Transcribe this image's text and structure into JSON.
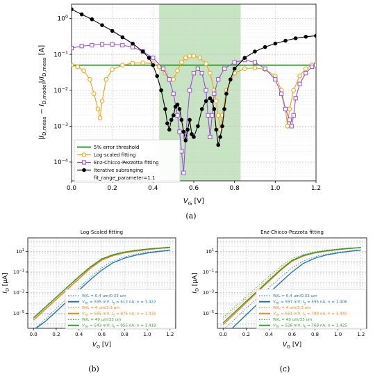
{
  "captions": {
    "a": "(a)",
    "b": "(b)",
    "c": "(c)"
  },
  "colors": {
    "threshold": "#2ca02c",
    "log": "#f0a30a",
    "ecp": "#9b4dd6",
    "iter": "#000000",
    "band": "#a8d5a2",
    "blue": "#1f77b4",
    "orange": "#ff7f0e",
    "green": "#2ca02c"
  },
  "chart_data": [
    {
      "id": "a",
      "type": "line",
      "xlabel": "V_G [V]",
      "ylabel": "|I_D,meas − I_D,model|/I_D,meas [A]",
      "xlim": [
        0.0,
        1.2
      ],
      "ylim": [
        3e-05,
        2.5
      ],
      "y_scale": "log",
      "x_ticks": [
        "0.0",
        "0.2",
        "0.4",
        "0.6",
        "0.8",
        "1.0",
        "1.2"
      ],
      "y_ticks": [
        "10^-4",
        "10^-3",
        "10^-2",
        "10^-1",
        "10^0"
      ],
      "grid": true,
      "legend_position": "lower-left",
      "shaded_region": [
        0.43,
        0.83
      ],
      "series": [
        {
          "name": "5% error threshold",
          "style": "line",
          "color": "threshold",
          "x": [
            0.0,
            1.2
          ],
          "y": [
            0.05,
            0.05
          ]
        },
        {
          "name": "Log-scaled fitting",
          "style": "circle",
          "color": "log",
          "x": [
            0.0,
            0.03,
            0.06,
            0.09,
            0.11,
            0.13,
            0.14,
            0.15,
            0.17,
            0.2,
            0.25,
            0.3,
            0.35,
            0.4,
            0.43,
            0.46,
            0.48,
            0.5,
            0.52,
            0.54,
            0.56,
            0.58,
            0.6,
            0.63,
            0.66,
            0.68,
            0.7,
            0.71,
            0.72,
            0.73,
            0.74,
            0.76,
            0.8,
            0.85,
            0.9,
            0.95,
            1.0,
            1.03,
            1.05,
            1.06,
            1.07,
            1.09,
            1.12,
            1.15,
            1.18,
            1.2
          ],
          "y": [
            0.05,
            0.045,
            0.035,
            0.02,
            0.008,
            0.003,
            0.0017,
            0.005,
            0.02,
            0.038,
            0.05,
            0.057,
            0.058,
            0.055,
            0.045,
            0.03,
            0.02,
            0.02,
            0.035,
            0.06,
            0.08,
            0.09,
            0.09,
            0.08,
            0.055,
            0.03,
            0.01,
            0.005,
            0.002,
            0.0008,
            0.002,
            0.01,
            0.03,
            0.04,
            0.042,
            0.038,
            0.025,
            0.01,
            0.003,
            0.001,
            0.003,
            0.01,
            0.025,
            0.04,
            0.05,
            0.055
          ]
        },
        {
          "name": "Enz-Chicco-Pezzotta fitting",
          "style": "square",
          "color": "ecp",
          "x": [
            0.0,
            0.05,
            0.1,
            0.15,
            0.2,
            0.25,
            0.3,
            0.35,
            0.4,
            0.45,
            0.48,
            0.5,
            0.52,
            0.53,
            0.54,
            0.55,
            0.56,
            0.58,
            0.6,
            0.62,
            0.64,
            0.66,
            0.67,
            0.68,
            0.69,
            0.7,
            0.72,
            0.75,
            0.8,
            0.85,
            0.9,
            0.95,
            1.0,
            1.03,
            1.05,
            1.07,
            1.08,
            1.09,
            1.1,
            1.12,
            1.15,
            1.18,
            1.2
          ],
          "y": [
            0.15,
            0.17,
            0.18,
            0.19,
            0.19,
            0.18,
            0.16,
            0.12,
            0.08,
            0.04,
            0.02,
            0.008,
            0.002,
            0.0007,
            0.0002,
            5e-05,
            0.0005,
            0.01,
            0.03,
            0.04,
            0.03,
            0.01,
            0.002,
            0.0005,
            0.002,
            0.008,
            0.02,
            0.04,
            0.06,
            0.07,
            0.06,
            0.04,
            0.02,
            0.008,
            0.003,
            0.0015,
            0.001,
            0.002,
            0.006,
            0.015,
            0.03,
            0.045,
            0.05
          ]
        },
        {
          "name": "Iterative subranging fit_range_parameter=1.1",
          "style": "dot",
          "color": "iter",
          "x": [
            0.0,
            0.05,
            0.1,
            0.15,
            0.2,
            0.25,
            0.3,
            0.35,
            0.38,
            0.4,
            0.42,
            0.44,
            0.46,
            0.47,
            0.48,
            0.49,
            0.5,
            0.51,
            0.52,
            0.53,
            0.54,
            0.55,
            0.56,
            0.57,
            0.58,
            0.59,
            0.6,
            0.62,
            0.64,
            0.66,
            0.68,
            0.69,
            0.7,
            0.71,
            0.72,
            0.73,
            0.74,
            0.75,
            0.76,
            0.78,
            0.8,
            0.85,
            0.9,
            0.95,
            1.0,
            1.05,
            1.1,
            1.15,
            1.2
          ],
          "y": [
            1.8,
            1.3,
            0.95,
            0.65,
            0.45,
            0.3,
            0.2,
            0.12,
            0.08,
            0.05,
            0.025,
            0.01,
            0.003,
            0.0012,
            0.0008,
            0.0015,
            0.002,
            0.0035,
            0.004,
            0.003,
            0.0015,
            0.0007,
            0.0004,
            0.0008,
            0.0015,
            0.0006,
            0.0005,
            0.001,
            0.003,
            0.005,
            0.006,
            0.005,
            0.003,
            0.0008,
            0.0003,
            0.0005,
            0.001,
            0.003,
            0.008,
            0.02,
            0.04,
            0.08,
            0.12,
            0.16,
            0.2,
            0.24,
            0.28,
            0.31,
            0.33
          ]
        }
      ]
    },
    {
      "id": "b",
      "type": "line",
      "title": "Log-Scaled fitting",
      "xlabel": "V_G [V]",
      "ylabel": "I_D [µA]",
      "xlim": [
        -0.05,
        1.25
      ],
      "ylim": [
        3.5e-07,
        200
      ],
      "y_scale": "log",
      "x_ticks": [
        "0.0",
        "0.2",
        "0.4",
        "0.6",
        "0.8",
        "1.0",
        "1.2"
      ],
      "y_ticks": [
        "10^-5",
        "10^-3",
        "10^-1",
        "10^1"
      ],
      "grid": true,
      "legend_position": "lower-right",
      "series": [
        {
          "name": "W/L = 0.4 um/0.33 um",
          "style": "dotted",
          "color": "blue",
          "x": [
            0.0,
            0.1,
            0.2,
            0.3,
            0.4,
            0.5,
            0.6,
            0.7,
            0.8,
            0.9,
            1.0,
            1.1,
            1.2
          ],
          "y": [
            2.5e-07,
            2.5e-06,
            3e-05,
            0.0003,
            0.003,
            0.03,
            0.25,
            1.2,
            3,
            5.5,
            8,
            11,
            14
          ]
        },
        {
          "name": "V_TH = 595 mV; I_S = 612 nA; n = 1.422",
          "style": "solid",
          "color": "blue",
          "x": [
            0.02,
            0.1,
            0.2,
            0.3,
            0.4,
            0.5,
            0.6,
            0.7,
            0.8,
            0.9,
            1.0,
            1.1,
            1.2
          ],
          "y": [
            3.5e-07,
            1.5e-06,
            1.5e-05,
            0.00016,
            0.0017,
            0.018,
            0.15,
            0.8,
            2.2,
            4.3,
            6.8,
            9.5,
            12.5
          ]
        },
        {
          "name": "W/L = 4 um/3.3 um",
          "style": "dotted",
          "color": "orange",
          "x": [
            0.0,
            0.1,
            0.2,
            0.3,
            0.4,
            0.5,
            0.6,
            0.7,
            0.8,
            0.9,
            1.0,
            1.1,
            1.2
          ],
          "y": [
            2.5e-06,
            2.5e-05,
            0.00025,
            0.0025,
            0.025,
            0.25,
            1.5,
            4,
            7.5,
            11,
            15,
            19,
            23
          ]
        },
        {
          "name": "V_TH = 565 mV; I_S = 876 nA; n = 1.432",
          "style": "solid",
          "color": "orange",
          "x": [
            0.0,
            0.1,
            0.2,
            0.3,
            0.4,
            0.5,
            0.6,
            0.7,
            0.8,
            0.9,
            1.0,
            1.1,
            1.2
          ],
          "y": [
            2.2e-06,
            2.2e-05,
            0.00022,
            0.0022,
            0.022,
            0.22,
            1.4,
            3.8,
            7.2,
            10.5,
            14.5,
            18.5,
            22
          ]
        },
        {
          "name": "W/L = 40 um/33 um",
          "style": "dotted",
          "color": "green",
          "x": [
            0.0,
            0.1,
            0.2,
            0.3,
            0.4,
            0.5,
            0.6,
            0.7,
            0.8,
            0.9,
            1.0,
            1.1,
            1.2
          ],
          "y": [
            4e-06,
            4e-05,
            0.0004,
            0.004,
            0.04,
            0.35,
            2,
            5,
            9,
            13,
            17,
            21,
            25
          ]
        },
        {
          "name": "V_TH = 543 mV; I_S = 855 nA; n = 1.419",
          "style": "solid",
          "color": "green",
          "x": [
            0.0,
            0.1,
            0.2,
            0.3,
            0.4,
            0.5,
            0.6,
            0.7,
            0.8,
            0.9,
            1.0,
            1.1,
            1.2
          ],
          "y": [
            3.5e-06,
            3.5e-05,
            0.00035,
            0.0035,
            0.035,
            0.3,
            1.8,
            4.6,
            8.5,
            12.5,
            16.5,
            20.5,
            24.5
          ]
        }
      ]
    },
    {
      "id": "c",
      "type": "line",
      "title": "Enz-Chicco-Pezzota fitting",
      "xlabel": "V_G [V]",
      "ylabel": "I_D [µA]",
      "xlim": [
        -0.05,
        1.25
      ],
      "ylim": [
        3.5e-07,
        200
      ],
      "y_scale": "log",
      "x_ticks": [
        "0.0",
        "0.2",
        "0.4",
        "0.6",
        "0.8",
        "1.0",
        "1.2"
      ],
      "y_ticks": [
        "10^-5",
        "10^-3",
        "10^-1",
        "10^1"
      ],
      "grid": true,
      "legend_position": "lower-right",
      "series": [
        {
          "name": "W/L = 0.4 um/0.33 um",
          "style": "dotted",
          "color": "blue",
          "x": [
            0.0,
            0.1,
            0.2,
            0.3,
            0.4,
            0.5,
            0.6,
            0.7,
            0.8,
            0.9,
            1.0,
            1.1,
            1.2
          ],
          "y": [
            2.5e-07,
            2.5e-06,
            3e-05,
            0.0003,
            0.003,
            0.03,
            0.25,
            1.2,
            3,
            5.5,
            8,
            11,
            14
          ]
        },
        {
          "name": "V_TH = 597 mV; I_S = 595 nA; n = 1.406",
          "style": "solid",
          "color": "blue",
          "x": [
            0.08,
            0.1,
            0.2,
            0.3,
            0.4,
            0.5,
            0.6,
            0.7,
            0.8,
            0.9,
            1.0,
            1.1,
            1.2
          ],
          "y": [
            3.5e-07,
            6e-07,
            7e-06,
            8e-05,
            0.0009,
            0.01,
            0.1,
            0.7,
            2.2,
            4.5,
            7,
            10,
            13
          ]
        },
        {
          "name": "W/L = 4 um/3.3 um",
          "style": "dotted",
          "color": "orange",
          "x": [
            0.0,
            0.1,
            0.2,
            0.3,
            0.4,
            0.5,
            0.6,
            0.7,
            0.8,
            0.9,
            1.0,
            1.1,
            1.2
          ],
          "y": [
            2.5e-06,
            2.5e-05,
            0.00025,
            0.0025,
            0.025,
            0.25,
            1.5,
            4,
            7.5,
            11,
            15,
            19,
            23
          ]
        },
        {
          "name": "V_TH = 551 mV; I_S = 788 nA; n = 1.440",
          "style": "solid",
          "color": "orange",
          "x": [
            0.0,
            0.1,
            0.2,
            0.3,
            0.4,
            0.5,
            0.6,
            0.7,
            0.8,
            0.9,
            1.0,
            1.1,
            1.2
          ],
          "y": [
            8e-07,
            9e-06,
            0.0001,
            0.0012,
            0.013,
            0.14,
            1.1,
            3.5,
            7,
            10.5,
            14.5,
            18.5,
            22.5
          ]
        },
        {
          "name": "W/L = 40 um/33 um",
          "style": "dotted",
          "color": "green",
          "x": [
            0.0,
            0.1,
            0.2,
            0.3,
            0.4,
            0.5,
            0.6,
            0.7,
            0.8,
            0.9,
            1.0,
            1.1,
            1.2
          ],
          "y": [
            4e-06,
            4e-05,
            0.0004,
            0.004,
            0.04,
            0.35,
            2,
            5,
            9,
            13,
            17,
            21,
            25
          ]
        },
        {
          "name": "V_TH = 526 mV; I_S = 769 nA; n = 1.425",
          "style": "solid",
          "color": "green",
          "x": [
            0.0,
            0.1,
            0.2,
            0.3,
            0.4,
            0.5,
            0.6,
            0.7,
            0.8,
            0.9,
            1.0,
            1.1,
            1.2
          ],
          "y": [
            1.2e-06,
            1.3e-05,
            0.00014,
            0.0015,
            0.016,
            0.17,
            1.3,
            4,
            7.8,
            11.5,
            15.5,
            19.5,
            23.5
          ]
        }
      ]
    }
  ]
}
